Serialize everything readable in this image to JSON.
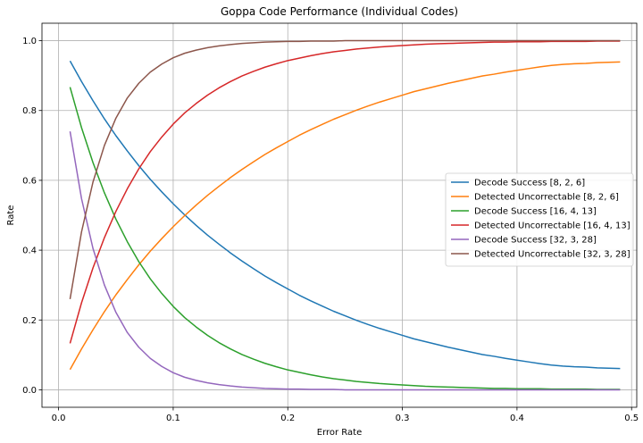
{
  "chart_data": {
    "type": "line",
    "title": "Goppa Code Performance (Individual Codes)",
    "xlabel": "Error Rate",
    "ylabel": "Rate",
    "xlim": [
      -0.0145,
      0.5045
    ],
    "ylim": [
      -0.05,
      1.05
    ],
    "xticks": [
      0.0,
      0.1,
      0.2,
      0.3,
      0.4,
      0.5
    ],
    "xtick_labels": [
      "0.0",
      "0.1",
      "0.2",
      "0.3",
      "0.4",
      "0.5"
    ],
    "yticks": [
      0.0,
      0.2,
      0.4,
      0.6,
      0.8,
      1.0
    ],
    "ytick_labels": [
      "0.0",
      "0.2",
      "0.4",
      "0.6",
      "0.8",
      "1.0"
    ],
    "grid": true,
    "legend_position": "center-right",
    "x": [
      0.01,
      0.02,
      0.03,
      0.04,
      0.05,
      0.06,
      0.07,
      0.08,
      0.09,
      0.1,
      0.11,
      0.12,
      0.13,
      0.14,
      0.15,
      0.16,
      0.17,
      0.18,
      0.19,
      0.2,
      0.21,
      0.22,
      0.23,
      0.24,
      0.25,
      0.26,
      0.27,
      0.28,
      0.29,
      0.3,
      0.31,
      0.32,
      0.33,
      0.34,
      0.35,
      0.36,
      0.37,
      0.38,
      0.39,
      0.4,
      0.41,
      0.42,
      0.43,
      0.44,
      0.45,
      0.46,
      0.47,
      0.48,
      0.49
    ],
    "series": [
      {
        "name": "Decode Success [8, 2, 6]",
        "color": "#1f77b4",
        "values": [
          0.942,
          0.883,
          0.828,
          0.776,
          0.728,
          0.684,
          0.642,
          0.603,
          0.567,
          0.533,
          0.501,
          0.471,
          0.443,
          0.417,
          0.392,
          0.369,
          0.347,
          0.326,
          0.307,
          0.289,
          0.271,
          0.255,
          0.24,
          0.225,
          0.212,
          0.199,
          0.187,
          0.176,
          0.166,
          0.156,
          0.146,
          0.138,
          0.13,
          0.122,
          0.115,
          0.108,
          0.101,
          0.096,
          0.09,
          0.085,
          0.08,
          0.075,
          0.071,
          0.068,
          0.066,
          0.065,
          0.063,
          0.062,
          0.061
        ]
      },
      {
        "name": "Detected Uncorrectable [8, 2, 6]",
        "color": "#ff7f0e",
        "values": [
          0.058,
          0.117,
          0.172,
          0.224,
          0.272,
          0.316,
          0.358,
          0.397,
          0.433,
          0.467,
          0.499,
          0.529,
          0.557,
          0.583,
          0.608,
          0.631,
          0.653,
          0.674,
          0.693,
          0.711,
          0.729,
          0.745,
          0.76,
          0.775,
          0.788,
          0.801,
          0.813,
          0.824,
          0.834,
          0.844,
          0.854,
          0.862,
          0.87,
          0.878,
          0.885,
          0.892,
          0.899,
          0.904,
          0.91,
          0.915,
          0.92,
          0.925,
          0.929,
          0.932,
          0.934,
          0.935,
          0.937,
          0.938,
          0.939
        ]
      },
      {
        "name": "Decode Success [16, 4, 13]",
        "color": "#2ca02c",
        "values": [
          0.867,
          0.751,
          0.651,
          0.564,
          0.489,
          0.424,
          0.367,
          0.318,
          0.276,
          0.239,
          0.207,
          0.18,
          0.156,
          0.135,
          0.117,
          0.101,
          0.088,
          0.076,
          0.066,
          0.057,
          0.05,
          0.043,
          0.037,
          0.032,
          0.028,
          0.024,
          0.021,
          0.018,
          0.016,
          0.014,
          0.012,
          0.01,
          0.009,
          0.008,
          0.007,
          0.006,
          0.005,
          0.004,
          0.004,
          0.003,
          0.003,
          0.003,
          0.002,
          0.002,
          0.002,
          0.002,
          0.001,
          0.001,
          0.001
        ]
      },
      {
        "name": "Detected Uncorrectable [16, 4, 13]",
        "color": "#d62728",
        "values": [
          0.133,
          0.249,
          0.349,
          0.436,
          0.511,
          0.576,
          0.633,
          0.682,
          0.724,
          0.761,
          0.793,
          0.82,
          0.844,
          0.865,
          0.883,
          0.899,
          0.912,
          0.924,
          0.934,
          0.943,
          0.95,
          0.957,
          0.963,
          0.968,
          0.972,
          0.976,
          0.979,
          0.982,
          0.984,
          0.986,
          0.988,
          0.99,
          0.991,
          0.992,
          0.993,
          0.994,
          0.995,
          0.996,
          0.996,
          0.997,
          0.997,
          0.997,
          0.998,
          0.998,
          0.998,
          0.998,
          0.999,
          0.999,
          0.999
        ]
      },
      {
        "name": "Decode Success [32, 3, 28]",
        "color": "#9467bd",
        "values": [
          0.74,
          0.548,
          0.405,
          0.3,
          0.222,
          0.164,
          0.122,
          0.09,
          0.067,
          0.049,
          0.036,
          0.027,
          0.02,
          0.015,
          0.011,
          0.008,
          0.006,
          0.004,
          0.003,
          0.002,
          0.002,
          0.001,
          0.001,
          0.001,
          0.0,
          0.0,
          0.0,
          0.0,
          0.0,
          0.0,
          0.0,
          0.0,
          0.0,
          0.0,
          0.0,
          0.0,
          0.0,
          0.0,
          0.0,
          0.0,
          0.0,
          0.0,
          0.0,
          0.0,
          0.0,
          0.0,
          0.0,
          0.0,
          0.0
        ]
      },
      {
        "name": "Detected Uncorrectable [32, 3, 28]",
        "color": "#8c564b",
        "values": [
          0.26,
          0.452,
          0.595,
          0.7,
          0.778,
          0.836,
          0.878,
          0.91,
          0.933,
          0.951,
          0.964,
          0.973,
          0.98,
          0.985,
          0.989,
          0.992,
          0.994,
          0.996,
          0.997,
          0.998,
          0.998,
          0.999,
          0.999,
          0.999,
          1.0,
          1.0,
          1.0,
          1.0,
          1.0,
          1.0,
          1.0,
          1.0,
          1.0,
          1.0,
          1.0,
          1.0,
          1.0,
          1.0,
          1.0,
          1.0,
          1.0,
          1.0,
          1.0,
          1.0,
          1.0,
          1.0,
          1.0,
          1.0,
          1.0
        ]
      }
    ]
  }
}
